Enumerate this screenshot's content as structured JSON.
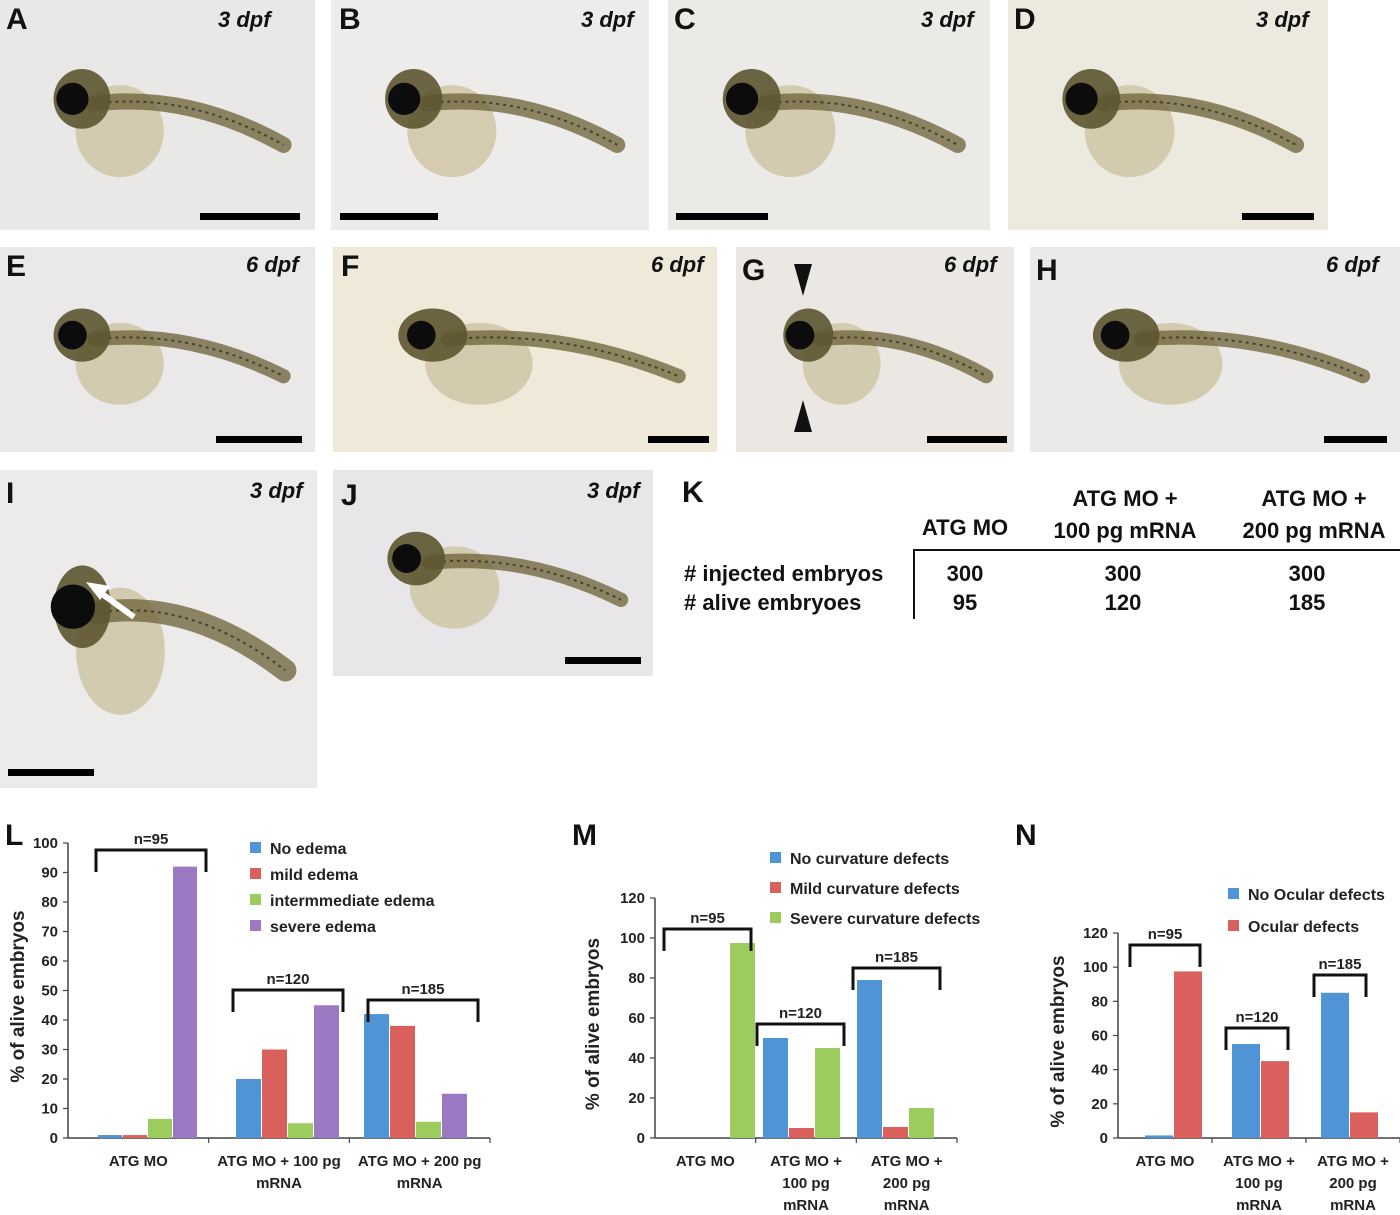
{
  "panels": [
    {
      "id": "A",
      "label": "A",
      "stage": "3 dpf",
      "bg": "#e9e8e6"
    },
    {
      "id": "B",
      "label": "B",
      "stage": "3 dpf",
      "bg": "#eeeceb"
    },
    {
      "id": "C",
      "label": "C",
      "stage": "3 dpf",
      "bg": "#eceae7"
    },
    {
      "id": "D",
      "label": "D",
      "stage": "3 dpf",
      "bg": "#ece9de"
    },
    {
      "id": "E",
      "label": "E",
      "stage": "6 dpf",
      "bg": "#ebe8ea"
    },
    {
      "id": "F",
      "label": "F",
      "stage": "6 dpf",
      "bg": "#efe9da"
    },
    {
      "id": "G",
      "label": "G",
      "stage": "6 dpf",
      "bg": "#ebe8e4"
    },
    {
      "id": "H",
      "label": "H",
      "stage": "6 dpf",
      "bg": "#ebeae8"
    },
    {
      "id": "I",
      "label": "I",
      "stage": "3 dpf",
      "bg": "#ecebe9"
    },
    {
      "id": "J",
      "label": "J",
      "stage": "3 dpf",
      "bg": "#e8e6e8"
    }
  ],
  "table_k": {
    "label": "K",
    "columns": [
      "ATG MO",
      "ATG MO +\n100 pg mRNA",
      "ATG MO +\n200 pg mRNA"
    ],
    "col_line1": [
      "",
      "ATG MO +",
      "ATG MO +"
    ],
    "col_line2": [
      "ATG MO",
      "100 pg mRNA",
      "200 pg mRNA"
    ],
    "rows": [
      {
        "label": "# injected embryos",
        "values": [
          "300",
          "300",
          "300"
        ]
      },
      {
        "label": "# alive embryoes",
        "values": [
          "95",
          "120",
          "185"
        ]
      }
    ]
  },
  "chart_data": [
    {
      "panel": "L",
      "type": "bar",
      "ylabel": "% of alive embryos",
      "ylim": [
        0,
        100
      ],
      "yticks": [
        0,
        10,
        20,
        30,
        40,
        50,
        60,
        70,
        80,
        90,
        100
      ],
      "categories": [
        "ATG MO",
        "ATG MO + 100 pg mRNA",
        "ATG MO + 200 pg mRNA"
      ],
      "category_lines": [
        [
          "ATG MO"
        ],
        [
          "ATG MO + 100 pg",
          "mRNA"
        ],
        [
          "ATG MO + 200 pg",
          "mRNA"
        ]
      ],
      "n_labels": [
        "n=95",
        "n=120",
        "n=185"
      ],
      "series": [
        {
          "name": "No edema",
          "color": "#4f94d4",
          "values": [
            1,
            20,
            42
          ]
        },
        {
          "name": "mild edema",
          "color": "#d9605c",
          "values": [
            1,
            30,
            38
          ]
        },
        {
          "name": "intermmediate edema",
          "color": "#9ccb5e",
          "values": [
            6.5,
            5,
            5.5
          ]
        },
        {
          "name": "severe edema",
          "color": "#9b79c3",
          "values": [
            92,
            45,
            15
          ]
        }
      ]
    },
    {
      "panel": "M",
      "type": "bar",
      "ylabel": "% of alive embryos",
      "ylim": [
        0,
        120
      ],
      "yticks": [
        0,
        20,
        40,
        60,
        80,
        100,
        120
      ],
      "categories": [
        "ATG MO",
        "ATG MO + 100 pg mRNA",
        "ATG MO + 200 pg mRNA"
      ],
      "category_lines": [
        [
          "ATG MO"
        ],
        [
          "ATG MO +",
          "100 pg",
          "mRNA"
        ],
        [
          "ATG MO +",
          "200 pg",
          "mRNA"
        ]
      ],
      "n_labels": [
        "n=95",
        "n=120",
        "n=185"
      ],
      "series": [
        {
          "name": "No curvature defects",
          "color": "#4f94d4",
          "values": [
            0,
            50,
            79
          ]
        },
        {
          "name": "Mild curvature defects",
          "color": "#d9605c",
          "values": [
            0,
            5,
            5.5
          ]
        },
        {
          "name": "Severe curvature defects",
          "color": "#9ccb5e",
          "values": [
            97.5,
            45,
            15
          ]
        }
      ]
    },
    {
      "panel": "N",
      "type": "bar",
      "ylabel": "% of alive embryos",
      "ylim": [
        0,
        120
      ],
      "yticks": [
        0,
        20,
        40,
        60,
        80,
        100,
        120
      ],
      "categories": [
        "ATG MO",
        "ATG MO + 100 pg mRNA",
        "ATG MO + 200 pg mRNA"
      ],
      "category_lines": [
        [
          "ATG MO"
        ],
        [
          "ATG MO +",
          "100 pg",
          "mRNA"
        ],
        [
          "ATG MO +",
          "200 pg",
          "mRNA"
        ]
      ],
      "n_labels": [
        "n=95",
        "n=120",
        "n=185"
      ],
      "series": [
        {
          "name": "No Ocular defects",
          "color": "#4f94d4",
          "values": [
            1.5,
            55,
            85
          ]
        },
        {
          "name": "Ocular defects",
          "color": "#d9605c",
          "values": [
            97.5,
            45,
            15
          ]
        }
      ]
    }
  ]
}
